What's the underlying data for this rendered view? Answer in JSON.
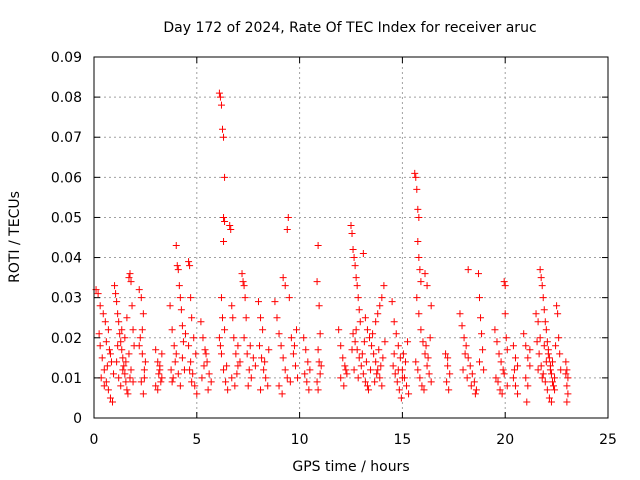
{
  "chart_data": {
    "type": "scatter",
    "title": "Day 172 of 2024, Rate Of TEC Index for receiver aruc",
    "xlabel": "GPS time / hours",
    "ylabel": "ROTI / TECUs",
    "xlim": [
      0,
      25
    ],
    "ylim": [
      0,
      0.09
    ],
    "x_ticks": [
      "0",
      "5",
      "10",
      "15",
      "20",
      "25"
    ],
    "y_ticks": [
      "0",
      "0.01",
      "0.02",
      "0.03",
      "0.04",
      "0.05",
      "0.06",
      "0.07",
      "0.08",
      "0.09"
    ],
    "grid": true,
    "marker": "+",
    "marker_color": "#ff0000",
    "points": [
      [
        0.1,
        0.032
      ],
      [
        0.2,
        0.031
      ],
      [
        0.3,
        0.028
      ],
      [
        0.25,
        0.021
      ],
      [
        0.3,
        0.018
      ],
      [
        0.4,
        0.015
      ],
      [
        0.5,
        0.012
      ],
      [
        0.6,
        0.009
      ],
      [
        0.7,
        0.007
      ],
      [
        0.8,
        0.005
      ],
      [
        0.9,
        0.004
      ],
      [
        0.45,
        0.026
      ],
      [
        0.6,
        0.019
      ],
      [
        0.7,
        0.022
      ],
      [
        0.8,
        0.016
      ],
      [
        0.95,
        0.011
      ],
      [
        0.35,
        0.01
      ],
      [
        0.5,
        0.008
      ],
      [
        0.65,
        0.013
      ],
      [
        0.75,
        0.017
      ],
      [
        0.85,
        0.014
      ],
      [
        0.55,
        0.024
      ],
      [
        1.0,
        0.033
      ],
      [
        1.05,
        0.031
      ],
      [
        1.1,
        0.029
      ],
      [
        1.15,
        0.026
      ],
      [
        1.2,
        0.024
      ],
      [
        1.25,
        0.021
      ],
      [
        1.3,
        0.019
      ],
      [
        1.35,
        0.017
      ],
      [
        1.4,
        0.015
      ],
      [
        1.45,
        0.013
      ],
      [
        1.5,
        0.011
      ],
      [
        1.55,
        0.009
      ],
      [
        1.6,
        0.007
      ],
      [
        1.65,
        0.006
      ],
      [
        1.7,
        0.035
      ],
      [
        1.75,
        0.036
      ],
      [
        1.8,
        0.034
      ],
      [
        1.85,
        0.028
      ],
      [
        1.9,
        0.022
      ],
      [
        1.95,
        0.018
      ],
      [
        1.1,
        0.014
      ],
      [
        1.2,
        0.01
      ],
      [
        1.3,
        0.008
      ],
      [
        1.4,
        0.012
      ],
      [
        1.5,
        0.02
      ],
      [
        1.6,
        0.025
      ],
      [
        1.7,
        0.016
      ],
      [
        1.8,
        0.012
      ],
      [
        1.9,
        0.009
      ],
      [
        1.15,
        0.018
      ],
      [
        1.35,
        0.022
      ],
      [
        1.55,
        0.014
      ],
      [
        1.75,
        0.01
      ],
      [
        2.2,
        0.032
      ],
      [
        2.3,
        0.03
      ],
      [
        2.4,
        0.026
      ],
      [
        2.25,
        0.02
      ],
      [
        2.35,
        0.016
      ],
      [
        2.45,
        0.012
      ],
      [
        2.3,
        0.009
      ],
      [
        2.4,
        0.006
      ],
      [
        2.5,
        0.014
      ],
      [
        2.2,
        0.018
      ],
      [
        2.35,
        0.022
      ],
      [
        2.45,
        0.01
      ],
      [
        3.0,
        0.017
      ],
      [
        3.1,
        0.014
      ],
      [
        3.2,
        0.012
      ],
      [
        3.3,
        0.01
      ],
      [
        3.0,
        0.008
      ],
      [
        3.1,
        0.007
      ],
      [
        3.2,
        0.013
      ],
      [
        3.3,
        0.016
      ],
      [
        3.15,
        0.011
      ],
      [
        3.25,
        0.009
      ],
      [
        3.7,
        0.028
      ],
      [
        3.8,
        0.022
      ],
      [
        3.9,
        0.018
      ],
      [
        4.0,
        0.043
      ],
      [
        4.05,
        0.038
      ],
      [
        4.1,
        0.037
      ],
      [
        4.15,
        0.033
      ],
      [
        4.2,
        0.03
      ],
      [
        4.25,
        0.027
      ],
      [
        4.3,
        0.023
      ],
      [
        4.35,
        0.019
      ],
      [
        3.75,
        0.012
      ],
      [
        3.85,
        0.01
      ],
      [
        3.95,
        0.014
      ],
      [
        4.1,
        0.011
      ],
      [
        4.2,
        0.008
      ],
      [
        4.3,
        0.015
      ],
      [
        4.4,
        0.012
      ],
      [
        3.8,
        0.009
      ],
      [
        4.0,
        0.016
      ],
      [
        4.45,
        0.021
      ],
      [
        4.6,
        0.039
      ],
      [
        4.65,
        0.038
      ],
      [
        4.7,
        0.03
      ],
      [
        4.75,
        0.025
      ],
      [
        4.6,
        0.018
      ],
      [
        4.7,
        0.014
      ],
      [
        4.8,
        0.011
      ],
      [
        4.9,
        0.008
      ],
      [
        5.0,
        0.006
      ],
      [
        4.85,
        0.02
      ],
      [
        4.95,
        0.016
      ],
      [
        4.65,
        0.012
      ],
      [
        4.75,
        0.009
      ],
      [
        5.2,
        0.024
      ],
      [
        5.3,
        0.02
      ],
      [
        5.4,
        0.017
      ],
      [
        5.5,
        0.014
      ],
      [
        5.6,
        0.011
      ],
      [
        5.7,
        0.009
      ],
      [
        5.35,
        0.013
      ],
      [
        5.45,
        0.016
      ],
      [
        5.25,
        0.01
      ],
      [
        5.55,
        0.007
      ],
      [
        6.1,
        0.081
      ],
      [
        6.15,
        0.08
      ],
      [
        6.2,
        0.078
      ],
      [
        6.25,
        0.072
      ],
      [
        6.3,
        0.07
      ],
      [
        6.35,
        0.06
      ],
      [
        6.3,
        0.05
      ],
      [
        6.35,
        0.049
      ],
      [
        6.3,
        0.044
      ],
      [
        6.2,
        0.03
      ],
      [
        6.25,
        0.025
      ],
      [
        6.1,
        0.02
      ],
      [
        6.2,
        0.016
      ],
      [
        6.3,
        0.012
      ],
      [
        6.4,
        0.009
      ],
      [
        6.5,
        0.007
      ],
      [
        6.45,
        0.013
      ],
      [
        6.15,
        0.018
      ],
      [
        6.35,
        0.022
      ],
      [
        6.6,
        0.048
      ],
      [
        6.65,
        0.047
      ],
      [
        6.7,
        0.028
      ],
      [
        6.75,
        0.025
      ],
      [
        6.8,
        0.02
      ],
      [
        6.9,
        0.016
      ],
      [
        7.0,
        0.013
      ],
      [
        6.7,
        0.01
      ],
      [
        6.85,
        0.008
      ],
      [
        7.0,
        0.018
      ],
      [
        7.1,
        0.014
      ],
      [
        6.95,
        0.011
      ],
      [
        7.2,
        0.036
      ],
      [
        7.25,
        0.034
      ],
      [
        7.3,
        0.033
      ],
      [
        7.35,
        0.03
      ],
      [
        7.4,
        0.025
      ],
      [
        7.3,
        0.02
      ],
      [
        7.45,
        0.016
      ],
      [
        7.55,
        0.012
      ],
      [
        7.65,
        0.01
      ],
      [
        7.5,
        0.008
      ],
      [
        7.75,
        0.015
      ],
      [
        7.85,
        0.013
      ],
      [
        7.6,
        0.018
      ],
      [
        8.0,
        0.029
      ],
      [
        8.1,
        0.025
      ],
      [
        8.2,
        0.022
      ],
      [
        8.05,
        0.018
      ],
      [
        8.15,
        0.015
      ],
      [
        8.25,
        0.012
      ],
      [
        8.35,
        0.01
      ],
      [
        8.45,
        0.008
      ],
      [
        8.1,
        0.007
      ],
      [
        8.3,
        0.014
      ],
      [
        8.5,
        0.017
      ],
      [
        8.8,
        0.029
      ],
      [
        8.9,
        0.025
      ],
      [
        9.0,
        0.021
      ],
      [
        9.1,
        0.018
      ],
      [
        9.2,
        0.015
      ],
      [
        9.3,
        0.012
      ],
      [
        9.4,
        0.01
      ],
      [
        9.2,
        0.035
      ],
      [
        9.3,
        0.033
      ],
      [
        9.45,
        0.05
      ],
      [
        9.4,
        0.047
      ],
      [
        9.5,
        0.03
      ],
      [
        9.6,
        0.02
      ],
      [
        9.7,
        0.016
      ],
      [
        9.8,
        0.013
      ],
      [
        9.9,
        0.01
      ],
      [
        9.0,
        0.008
      ],
      [
        9.15,
        0.006
      ],
      [
        9.55,
        0.009
      ],
      [
        9.75,
        0.018
      ],
      [
        9.85,
        0.022
      ],
      [
        10.2,
        0.02
      ],
      [
        10.3,
        0.017
      ],
      [
        10.4,
        0.014
      ],
      [
        10.5,
        0.012
      ],
      [
        10.35,
        0.009
      ],
      [
        10.45,
        0.007
      ],
      [
        10.25,
        0.011
      ],
      [
        10.9,
        0.043
      ],
      [
        10.85,
        0.034
      ],
      [
        10.95,
        0.028
      ],
      [
        11.0,
        0.021
      ],
      [
        10.9,
        0.017
      ],
      [
        10.95,
        0.014
      ],
      [
        11.0,
        0.011
      ],
      [
        10.85,
        0.009
      ],
      [
        10.9,
        0.007
      ],
      [
        11.05,
        0.013
      ],
      [
        11.9,
        0.022
      ],
      [
        12.0,
        0.018
      ],
      [
        12.1,
        0.015
      ],
      [
        12.2,
        0.013
      ],
      [
        12.3,
        0.011
      ],
      [
        12.0,
        0.01
      ],
      [
        12.15,
        0.008
      ],
      [
        12.25,
        0.012
      ],
      [
        12.5,
        0.048
      ],
      [
        12.55,
        0.046
      ],
      [
        12.6,
        0.042
      ],
      [
        12.65,
        0.04
      ],
      [
        12.7,
        0.038
      ],
      [
        12.75,
        0.035
      ],
      [
        12.8,
        0.033
      ],
      [
        12.85,
        0.03
      ],
      [
        12.9,
        0.027
      ],
      [
        12.95,
        0.024
      ],
      [
        12.6,
        0.021
      ],
      [
        12.7,
        0.019
      ],
      [
        12.8,
        0.017
      ],
      [
        12.9,
        0.015
      ],
      [
        13.0,
        0.013
      ],
      [
        13.1,
        0.011
      ],
      [
        13.2,
        0.009
      ],
      [
        13.3,
        0.008
      ],
      [
        13.1,
        0.041
      ],
      [
        13.2,
        0.025
      ],
      [
        13.3,
        0.022
      ],
      [
        13.4,
        0.02
      ],
      [
        13.5,
        0.018
      ],
      [
        13.6,
        0.016
      ],
      [
        13.7,
        0.014
      ],
      [
        13.8,
        0.012
      ],
      [
        13.9,
        0.01
      ],
      [
        14.0,
        0.008
      ],
      [
        14.1,
        0.033
      ],
      [
        14.0,
        0.03
      ],
      [
        13.9,
        0.028
      ],
      [
        13.8,
        0.026
      ],
      [
        13.7,
        0.024
      ],
      [
        12.65,
        0.012
      ],
      [
        12.85,
        0.01
      ],
      [
        13.05,
        0.016
      ],
      [
        13.25,
        0.014
      ],
      [
        13.45,
        0.012
      ],
      [
        13.65,
        0.009
      ],
      [
        13.85,
        0.017
      ],
      [
        14.05,
        0.015
      ],
      [
        12.55,
        0.017
      ],
      [
        12.75,
        0.022
      ],
      [
        13.15,
        0.019
      ],
      [
        13.35,
        0.007
      ],
      [
        13.55,
        0.021
      ],
      [
        13.75,
        0.011
      ],
      [
        13.95,
        0.013
      ],
      [
        14.15,
        0.019
      ],
      [
        14.5,
        0.029
      ],
      [
        14.6,
        0.024
      ],
      [
        14.7,
        0.021
      ],
      [
        14.8,
        0.018
      ],
      [
        14.9,
        0.015
      ],
      [
        15.0,
        0.012
      ],
      [
        15.1,
        0.01
      ],
      [
        15.2,
        0.008
      ],
      [
        15.3,
        0.006
      ],
      [
        14.55,
        0.013
      ],
      [
        14.65,
        0.011
      ],
      [
        14.75,
        0.009
      ],
      [
        14.85,
        0.007
      ],
      [
        14.95,
        0.005
      ],
      [
        15.05,
        0.016
      ],
      [
        15.15,
        0.014
      ],
      [
        15.25,
        0.019
      ],
      [
        14.6,
        0.016
      ],
      [
        14.8,
        0.012
      ],
      [
        15.0,
        0.01
      ],
      [
        15.6,
        0.061
      ],
      [
        15.65,
        0.06
      ],
      [
        15.7,
        0.057
      ],
      [
        15.75,
        0.052
      ],
      [
        15.8,
        0.05
      ],
      [
        15.75,
        0.044
      ],
      [
        15.8,
        0.04
      ],
      [
        15.85,
        0.037
      ],
      [
        15.9,
        0.034
      ],
      [
        15.7,
        0.03
      ],
      [
        15.8,
        0.026
      ],
      [
        15.9,
        0.022
      ],
      [
        16.0,
        0.019
      ],
      [
        16.1,
        0.016
      ],
      [
        16.2,
        0.013
      ],
      [
        16.3,
        0.011
      ],
      [
        16.4,
        0.009
      ],
      [
        15.65,
        0.014
      ],
      [
        15.75,
        0.012
      ],
      [
        15.85,
        0.01
      ],
      [
        15.95,
        0.008
      ],
      [
        16.05,
        0.007
      ],
      [
        16.15,
        0.018
      ],
      [
        16.25,
        0.015
      ],
      [
        16.1,
        0.036
      ],
      [
        16.2,
        0.033
      ],
      [
        16.4,
        0.028
      ],
      [
        16.35,
        0.02
      ],
      [
        17.1,
        0.016
      ],
      [
        17.2,
        0.013
      ],
      [
        17.3,
        0.011
      ],
      [
        17.15,
        0.009
      ],
      [
        17.25,
        0.007
      ],
      [
        17.2,
        0.015
      ],
      [
        17.8,
        0.026
      ],
      [
        17.9,
        0.023
      ],
      [
        18.0,
        0.02
      ],
      [
        18.1,
        0.018
      ],
      [
        18.2,
        0.015
      ],
      [
        18.3,
        0.013
      ],
      [
        18.4,
        0.011
      ],
      [
        18.5,
        0.009
      ],
      [
        18.6,
        0.007
      ],
      [
        18.2,
        0.037
      ],
      [
        18.7,
        0.036
      ],
      [
        18.75,
        0.03
      ],
      [
        18.8,
        0.025
      ],
      [
        18.85,
        0.021
      ],
      [
        18.9,
        0.017
      ],
      [
        17.95,
        0.012
      ],
      [
        18.15,
        0.01
      ],
      [
        18.35,
        0.008
      ],
      [
        18.55,
        0.006
      ],
      [
        18.75,
        0.014
      ],
      [
        18.95,
        0.012
      ],
      [
        18.05,
        0.016
      ],
      [
        19.5,
        0.022
      ],
      [
        19.6,
        0.019
      ],
      [
        19.7,
        0.016
      ],
      [
        19.8,
        0.014
      ],
      [
        19.9,
        0.012
      ],
      [
        19.95,
        0.034
      ],
      [
        20.0,
        0.033
      ],
      [
        20.0,
        0.026
      ],
      [
        20.05,
        0.02
      ],
      [
        20.1,
        0.017
      ],
      [
        19.55,
        0.01
      ],
      [
        19.65,
        0.009
      ],
      [
        19.75,
        0.007
      ],
      [
        19.85,
        0.006
      ],
      [
        19.95,
        0.011
      ],
      [
        20.1,
        0.008
      ],
      [
        20.4,
        0.018
      ],
      [
        20.5,
        0.015
      ],
      [
        20.6,
        0.013
      ],
      [
        20.4,
        0.01
      ],
      [
        20.5,
        0.008
      ],
      [
        20.6,
        0.006
      ],
      [
        20.45,
        0.012
      ],
      [
        20.9,
        0.021
      ],
      [
        21.0,
        0.018
      ],
      [
        21.1,
        0.015
      ],
      [
        21.2,
        0.013
      ],
      [
        21.0,
        0.01
      ],
      [
        21.1,
        0.008
      ],
      [
        21.05,
        0.004
      ],
      [
        21.2,
        0.017
      ],
      [
        21.5,
        0.026
      ],
      [
        21.6,
        0.024
      ],
      [
        21.7,
        0.037
      ],
      [
        21.75,
        0.035
      ],
      [
        21.8,
        0.033
      ],
      [
        21.85,
        0.03
      ],
      [
        21.9,
        0.027
      ],
      [
        21.95,
        0.024
      ],
      [
        22.0,
        0.022
      ],
      [
        22.05,
        0.019
      ],
      [
        22.1,
        0.017
      ],
      [
        22.15,
        0.015
      ],
      [
        22.2,
        0.013
      ],
      [
        22.25,
        0.011
      ],
      [
        22.3,
        0.009
      ],
      [
        22.35,
        0.008
      ],
      [
        22.4,
        0.007
      ],
      [
        21.55,
        0.019
      ],
      [
        21.65,
        0.016
      ],
      [
        21.75,
        0.013
      ],
      [
        21.85,
        0.011
      ],
      [
        21.95,
        0.009
      ],
      [
        22.05,
        0.007
      ],
      [
        22.15,
        0.005
      ],
      [
        22.25,
        0.004
      ],
      [
        21.6,
        0.012
      ],
      [
        21.8,
        0.01
      ],
      [
        22.0,
        0.014
      ],
      [
        22.2,
        0.012
      ],
      [
        22.4,
        0.01
      ],
      [
        22.5,
        0.028
      ],
      [
        22.55,
        0.026
      ],
      [
        22.6,
        0.02
      ],
      [
        22.65,
        0.016
      ],
      [
        22.7,
        0.012
      ],
      [
        21.7,
        0.02
      ],
      [
        21.9,
        0.018
      ],
      [
        22.1,
        0.016
      ],
      [
        22.3,
        0.014
      ],
      [
        22.45,
        0.018
      ],
      [
        22.95,
        0.014
      ],
      [
        23.0,
        0.012
      ],
      [
        23.05,
        0.01
      ],
      [
        23.0,
        0.008
      ],
      [
        23.05,
        0.006
      ],
      [
        23.0,
        0.004
      ],
      [
        22.95,
        0.011
      ]
    ]
  }
}
